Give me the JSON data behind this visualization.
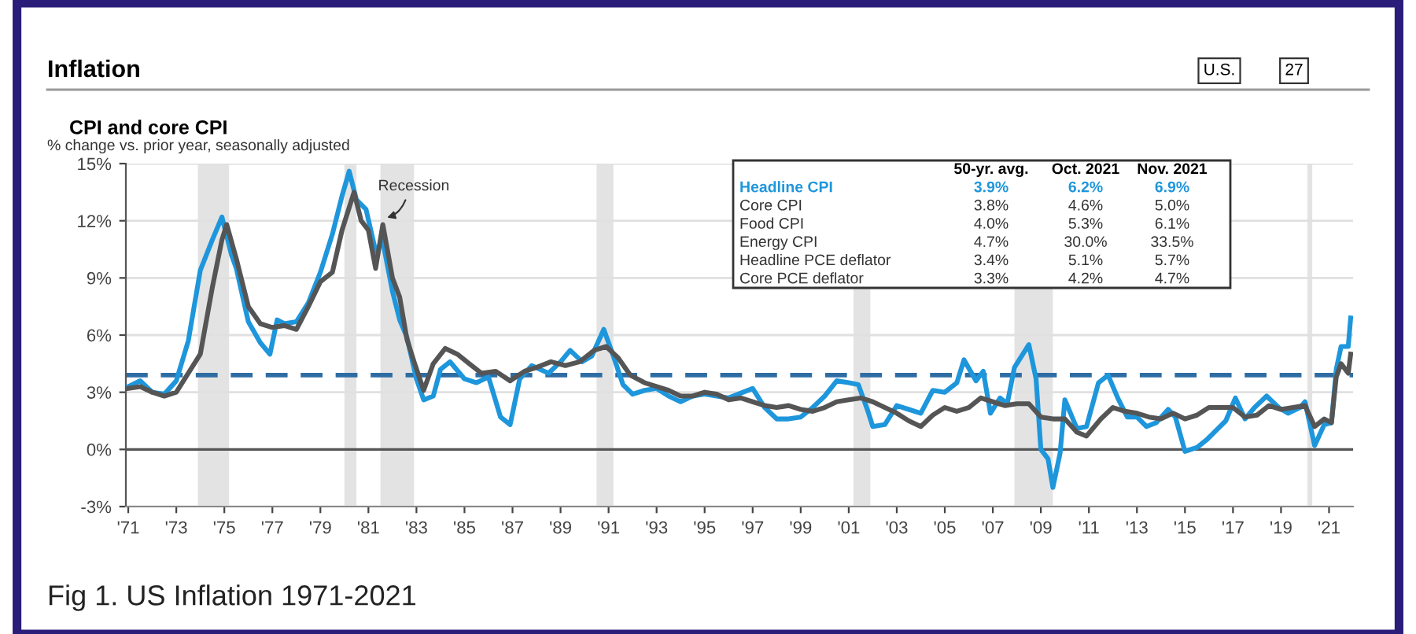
{
  "chart_data": {
    "type": "line",
    "title": "CPI and core CPI",
    "subtitle": "% change vs. prior year, seasonally adjusted",
    "annotations": [
      "Inflation",
      "U.S.",
      "27",
      "Recession",
      "Fig 1. US Inflation 1971-2021",
      "50-yr. avg.",
      "Oct. 2021",
      "Nov. 2021",
      "3.9%",
      "6.2%",
      "6.9%",
      "3.8%",
      "4.6%",
      "5.0%",
      "Food CPI",
      "4.0%",
      "5.3%",
      "6.1%",
      "Energy CPI",
      "4.7%",
      "30.0%",
      "33.5%",
      "Headline PCE deflator",
      "3.4%",
      "5.1%",
      "5.7%",
      "Core PCE deflator",
      "3.3%",
      "4.2%",
      "4.7%"
    ],
    "series": [
      {
        "name": "Headline CPI",
        "color": "#1e96dc",
        "x": [
          1971.0,
          1971.5,
          1972.0,
          1972.5,
          1973.0,
          1973.5,
          1974.0,
          1974.5,
          1974.9,
          1975.3,
          1975.5,
          1976.0,
          1976.5,
          1976.9,
          1977.2,
          1977.5,
          1978.0,
          1978.5,
          1979.0,
          1979.5,
          1979.9,
          1980.2,
          1980.5,
          1980.9,
          1981.3,
          1981.6,
          1982.0,
          1982.3,
          1982.6,
          1983.0,
          1983.3,
          1983.7,
          1984.0,
          1984.4,
          1985.0,
          1985.5,
          1986.0,
          1986.5,
          1986.9,
          1987.3,
          1987.8,
          1988.5,
          1989.0,
          1989.4,
          1989.9,
          1990.3,
          1990.8,
          1991.2,
          1991.6,
          1992.0,
          1992.5,
          1993.0,
          1993.5,
          1994.0,
          1994.5,
          1995.0,
          1995.5,
          1996.0,
          1996.6,
          1997.0,
          1997.5,
          1998.0,
          1998.5,
          1999.0,
          1999.5,
          2000.0,
          2000.5,
          2001.0,
          2001.4,
          2001.8,
          2002.0,
          2002.5,
          2003.0,
          2003.5,
          2004.0,
          2004.5,
          2005.0,
          2005.5,
          2005.8,
          2006.3,
          2006.6,
          2006.9,
          2007.3,
          2007.6,
          2007.9,
          2008.5,
          2008.8,
          2009.0,
          2009.3,
          2009.5,
          2009.8,
          2010.0,
          2010.5,
          2010.9,
          2011.4,
          2011.8,
          2012.2,
          2012.6,
          2013.0,
          2013.4,
          2013.8,
          2014.3,
          2014.6,
          2015.0,
          2015.5,
          2015.9,
          2016.3,
          2016.7,
          2017.1,
          2017.5,
          2017.9,
          2018.4,
          2018.9,
          2019.3,
          2019.8,
          2020.0,
          2020.4,
          2020.8,
          2021.1,
          2021.3,
          2021.5,
          2021.8,
          2021.9
        ],
        "values": [
          3.3,
          3.6,
          3.0,
          2.9,
          3.6,
          5.7,
          9.4,
          11.0,
          12.2,
          10.2,
          9.5,
          6.7,
          5.6,
          5.0,
          6.8,
          6.6,
          6.7,
          7.7,
          9.3,
          11.3,
          13.3,
          14.6,
          13.1,
          12.6,
          10.4,
          10.9,
          8.3,
          6.8,
          5.9,
          3.7,
          2.6,
          2.8,
          4.2,
          4.6,
          3.7,
          3.5,
          3.8,
          1.7,
          1.3,
          3.7,
          4.4,
          4.0,
          4.6,
          5.2,
          4.6,
          4.9,
          6.3,
          4.9,
          3.4,
          2.9,
          3.1,
          3.2,
          2.8,
          2.5,
          2.8,
          2.9,
          2.8,
          2.7,
          3.0,
          3.2,
          2.2,
          1.6,
          1.6,
          1.7,
          2.2,
          2.8,
          3.6,
          3.5,
          3.4,
          2.0,
          1.2,
          1.3,
          2.3,
          2.1,
          1.9,
          3.1,
          3.0,
          3.5,
          4.7,
          3.6,
          4.1,
          1.9,
          2.7,
          2.4,
          4.3,
          5.5,
          3.7,
          0.0,
          -0.5,
          -2.0,
          -0.2,
          2.6,
          1.1,
          1.2,
          3.5,
          3.9,
          2.7,
          1.7,
          1.7,
          1.2,
          1.4,
          2.1,
          1.7,
          -0.1,
          0.1,
          0.5,
          1.0,
          1.5,
          2.7,
          1.6,
          2.2,
          2.8,
          2.2,
          1.9,
          2.2,
          2.5,
          0.2,
          1.3,
          1.4,
          4.2,
          5.4,
          5.4,
          6.9
        ]
      },
      {
        "name": "Core CPI",
        "color": "#555555",
        "x": [
          1971.0,
          1971.5,
          1972.0,
          1972.5,
          1973.0,
          1973.5,
          1974.0,
          1974.5,
          1974.9,
          1975.1,
          1975.5,
          1976.0,
          1976.5,
          1977.0,
          1977.5,
          1978.0,
          1978.5,
          1979.0,
          1979.5,
          1979.9,
          1980.4,
          1980.7,
          1981.0,
          1981.3,
          1981.6,
          1982.0,
          1982.3,
          1982.6,
          1982.9,
          1983.3,
          1983.7,
          1984.2,
          1984.7,
          1985.2,
          1985.7,
          1986.3,
          1986.9,
          1987.5,
          1988.0,
          1988.6,
          1989.2,
          1989.8,
          1990.4,
          1990.9,
          1991.4,
          1991.9,
          1992.5,
          1993.0,
          1993.5,
          1994.0,
          1994.5,
          1995.0,
          1995.5,
          1996.0,
          1996.5,
          1997.0,
          1997.5,
          1998.0,
          1998.5,
          1999.0,
          1999.5,
          2000.0,
          2000.5,
          2001.0,
          2001.5,
          2002.0,
          2002.5,
          2003.0,
          2003.5,
          2004.0,
          2004.5,
          2005.0,
          2005.5,
          2006.0,
          2006.5,
          2007.0,
          2007.5,
          2008.0,
          2008.5,
          2009.0,
          2009.5,
          2010.0,
          2010.5,
          2010.9,
          2011.5,
          2012.0,
          2012.5,
          2013.0,
          2013.5,
          2014.0,
          2014.5,
          2015.0,
          2015.5,
          2016.0,
          2016.5,
          2017.0,
          2017.5,
          2018.0,
          2018.5,
          2019.0,
          2019.5,
          2020.0,
          2020.4,
          2020.8,
          2021.1,
          2021.3,
          2021.5,
          2021.8,
          2021.9
        ],
        "values": [
          3.2,
          3.3,
          3.0,
          2.8,
          3.0,
          4.0,
          5.0,
          8.5,
          11.0,
          11.8,
          10.0,
          7.5,
          6.6,
          6.4,
          6.5,
          6.3,
          7.5,
          8.8,
          9.3,
          11.5,
          13.5,
          12.0,
          11.5,
          9.5,
          11.8,
          9.0,
          8.0,
          5.8,
          4.6,
          3.1,
          4.5,
          5.3,
          5.0,
          4.5,
          4.0,
          4.1,
          3.6,
          4.1,
          4.3,
          4.6,
          4.4,
          4.6,
          5.2,
          5.4,
          4.8,
          3.9,
          3.5,
          3.3,
          3.1,
          2.8,
          2.8,
          3.0,
          2.9,
          2.6,
          2.7,
          2.5,
          2.3,
          2.2,
          2.3,
          2.1,
          2.0,
          2.2,
          2.5,
          2.6,
          2.7,
          2.5,
          2.2,
          1.9,
          1.5,
          1.2,
          1.8,
          2.2,
          2.0,
          2.2,
          2.7,
          2.5,
          2.3,
          2.4,
          2.4,
          1.7,
          1.6,
          1.6,
          0.9,
          0.7,
          1.6,
          2.2,
          2.0,
          1.9,
          1.7,
          1.6,
          1.9,
          1.6,
          1.8,
          2.2,
          2.2,
          2.2,
          1.7,
          1.8,
          2.3,
          2.1,
          2.2,
          2.3,
          1.2,
          1.6,
          1.4,
          3.8,
          4.5,
          4.0,
          5.0
        ]
      }
    ],
    "ref_lines": [
      {
        "axis": "y",
        "value": 3.9,
        "color": "#2e6da4",
        "line_style": "dashed"
      },
      {
        "axis": "y",
        "value": 0,
        "color": "#555555"
      }
    ],
    "bands": [
      {
        "axis": "x",
        "from": 1973.9,
        "to": 1975.2,
        "color": "#e3e3e3"
      },
      {
        "axis": "x",
        "from": 1980.0,
        "to": 1980.5,
        "color": "#e3e3e3"
      },
      {
        "axis": "x",
        "from": 1981.5,
        "to": 1982.9,
        "color": "#e3e3e3"
      },
      {
        "axis": "x",
        "from": 1990.5,
        "to": 1991.2,
        "color": "#e3e3e3"
      },
      {
        "axis": "x",
        "from": 2001.2,
        "to": 2001.9,
        "color": "#e3e3e3"
      },
      {
        "axis": "x",
        "from": 2007.9,
        "to": 2009.5,
        "color": "#e3e3e3"
      },
      {
        "axis": "x",
        "from": 2020.1,
        "to": 2020.3,
        "color": "#e3e3e3"
      }
    ],
    "xlim": [
      1970.9,
      2022.0
    ],
    "ylim": [
      -3,
      15
    ],
    "xticks": [
      {
        "value": 1971,
        "label": "'71"
      },
      {
        "value": 1973,
        "label": "'73"
      },
      {
        "value": 1975,
        "label": "'75"
      },
      {
        "value": 1977,
        "label": "'77"
      },
      {
        "value": 1979,
        "label": "'79"
      },
      {
        "value": 1981,
        "label": "'81"
      },
      {
        "value": 1983,
        "label": "'83"
      },
      {
        "value": 1985,
        "label": "'85"
      },
      {
        "value": 1987,
        "label": "'87"
      },
      {
        "value": 1989,
        "label": "'89"
      },
      {
        "value": 1991,
        "label": "'91"
      },
      {
        "value": 1993,
        "label": "'93"
      },
      {
        "value": 1995,
        "label": "'95"
      },
      {
        "value": 1997,
        "label": "'97"
      },
      {
        "value": 1999,
        "label": "'99"
      },
      {
        "value": 2001,
        "label": "'01"
      },
      {
        "value": 2003,
        "label": "'03"
      },
      {
        "value": 2005,
        "label": "'05"
      },
      {
        "value": 2007,
        "label": "'07"
      },
      {
        "value": 2009,
        "label": "'09"
      },
      {
        "value": 2011,
        "label": "'11"
      },
      {
        "value": 2013,
        "label": "'13"
      },
      {
        "value": 2015,
        "label": "'15"
      },
      {
        "value": 2017,
        "label": "'17"
      },
      {
        "value": 2019,
        "label": "'19"
      },
      {
        "value": 2021,
        "label": "'21"
      }
    ],
    "yticks": [
      {
        "value": -3,
        "label": "-3%"
      },
      {
        "value": 0,
        "label": "0%"
      },
      {
        "value": 3,
        "label": "3%"
      },
      {
        "value": 6,
        "label": "6%"
      },
      {
        "value": 9,
        "label": "9%"
      },
      {
        "value": 12,
        "label": "12%"
      },
      {
        "value": 15,
        "label": "15%"
      }
    ],
    "grid": "y",
    "line_style": "solid",
    "marker": "none"
  }
}
